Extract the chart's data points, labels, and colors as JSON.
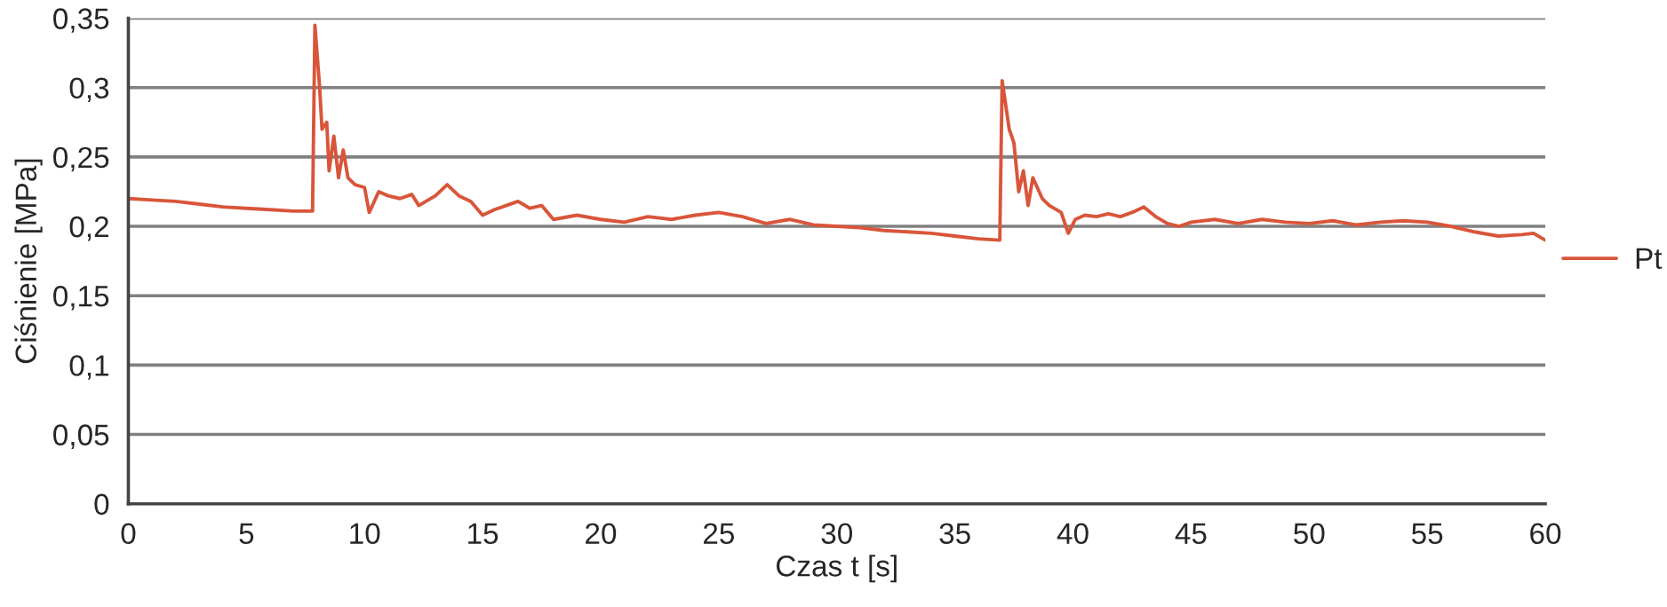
{
  "chart_data": {
    "type": "line",
    "xlabel": "Czas t [s]",
    "ylabel": "Ciśnienie [MPa]",
    "xlim": [
      0,
      60
    ],
    "xticks": [
      0,
      5,
      10,
      15,
      20,
      25,
      30,
      35,
      40,
      45,
      50,
      55,
      60
    ],
    "ylim": [
      0,
      0.35
    ],
    "yticks": [
      0,
      {
        "value": 0.05,
        "label": "0,05"
      },
      {
        "value": 0.1,
        "label": "0,1"
      },
      {
        "value": 0.15,
        "label": "0,15"
      },
      {
        "value": 0.2,
        "label": "0,2"
      },
      {
        "value": 0.25,
        "label": "0,25"
      },
      {
        "value": 0.3,
        "label": "0,3"
      },
      {
        "value": 0.35,
        "label": "0,35"
      }
    ],
    "grid": "y",
    "legend": "right",
    "marker": "none",
    "line_style": "solid",
    "x": [
      0,
      1,
      2,
      3,
      4,
      5,
      6,
      7,
      7.8,
      7.9,
      8.1,
      8.2,
      8.4,
      8.5,
      8.7,
      8.9,
      9.1,
      9.3,
      9.6,
      10,
      10.2,
      10.6,
      11,
      11.5,
      12,
      12.3,
      13,
      13.5,
      14,
      14.5,
      15,
      15.5,
      16,
      16.5,
      17,
      17.5,
      18,
      19,
      20,
      21,
      22,
      23,
      24,
      25,
      26,
      27,
      28,
      29,
      30,
      31,
      32,
      33,
      34,
      35,
      36,
      36.9,
      37,
      37.3,
      37.5,
      37.7,
      37.9,
      38.1,
      38.3,
      38.7,
      39,
      39.5,
      39.8,
      40.1,
      40.5,
      41,
      41.5,
      42,
      42.5,
      43,
      43.5,
      44,
      44.5,
      45,
      46,
      47,
      48,
      49,
      50,
      51,
      52,
      53,
      54,
      55,
      56,
      57,
      58,
      59,
      59.5,
      60
    ],
    "series": [
      {
        "name": "Pt",
        "color": "#d9553a",
        "values": [
          0.22,
          0.219,
          0.218,
          0.216,
          0.214,
          0.213,
          0.212,
          0.211,
          0.211,
          0.345,
          0.3,
          0.27,
          0.275,
          0.24,
          0.265,
          0.235,
          0.255,
          0.235,
          0.23,
          0.228,
          0.21,
          0.225,
          0.222,
          0.22,
          0.223,
          0.215,
          0.222,
          0.23,
          0.222,
          0.218,
          0.208,
          0.212,
          0.215,
          0.218,
          0.213,
          0.215,
          0.205,
          0.208,
          0.205,
          0.203,
          0.207,
          0.205,
          0.208,
          0.21,
          0.207,
          0.202,
          0.205,
          0.201,
          0.2,
          0.199,
          0.197,
          0.196,
          0.195,
          0.193,
          0.191,
          0.19,
          0.305,
          0.27,
          0.26,
          0.225,
          0.24,
          0.215,
          0.235,
          0.22,
          0.215,
          0.21,
          0.195,
          0.205,
          0.208,
          0.207,
          0.209,
          0.207,
          0.21,
          0.214,
          0.207,
          0.202,
          0.2,
          0.203,
          0.205,
          0.202,
          0.205,
          0.203,
          0.202,
          0.204,
          0.201,
          0.203,
          0.204,
          0.203,
          0.2,
          0.196,
          0.193,
          0.194,
          0.195,
          0.19
        ]
      }
    ]
  }
}
